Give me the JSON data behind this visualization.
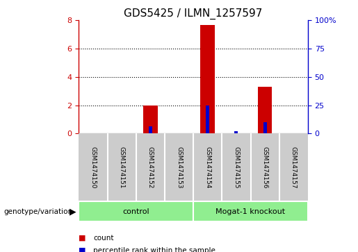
{
  "title": "GDS5425 / ILMN_1257597",
  "samples": [
    "GSM1474150",
    "GSM1474151",
    "GSM1474152",
    "GSM1474153",
    "GSM1474154",
    "GSM1474155",
    "GSM1474156",
    "GSM1474157"
  ],
  "count_values": [
    0,
    0,
    2.0,
    0,
    7.65,
    0,
    3.3,
    0
  ],
  "percentile_values": [
    0,
    0,
    6.5,
    0,
    25.0,
    1.8,
    10.0,
    0
  ],
  "groups": [
    {
      "label": "control",
      "start": 0,
      "end": 4,
      "color": "#90EE90"
    },
    {
      "label": "Mogat-1 knockout",
      "start": 4,
      "end": 8,
      "color": "#90EE90"
    }
  ],
  "ylim_left": [
    0,
    8
  ],
  "ylim_right": [
    0,
    100
  ],
  "yticks_left": [
    0,
    2,
    4,
    6,
    8
  ],
  "yticks_right": [
    0,
    25,
    50,
    75,
    100
  ],
  "left_axis_color": "#cc0000",
  "right_axis_color": "#0000cc",
  "count_color": "#cc0000",
  "percentile_color": "#0000cc",
  "grid_color": "#000000",
  "sample_bg_color": "#cccccc",
  "legend_count": "count",
  "legend_percentile": "percentile rank within the sample",
  "group_label": "genotype/variation"
}
